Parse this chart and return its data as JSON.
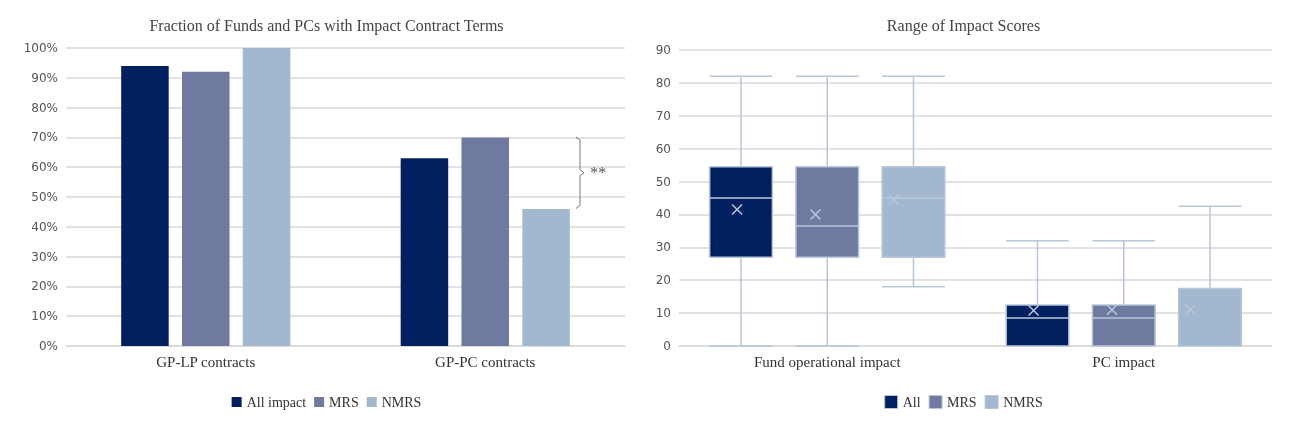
{
  "chart_data": [
    {
      "type": "bar",
      "title": "Fraction of Funds and PCs with Impact Contract Terms",
      "categories": [
        "GP-LP contracts",
        "GP-PC contracts"
      ],
      "series": [
        {
          "name": "All impact",
          "color": "#002060",
          "values": [
            94,
            63
          ]
        },
        {
          "name": "MRS",
          "color": "#707aa0",
          "values": [
            92,
            70
          ]
        },
        {
          "name": "NMRS",
          "color": "#a2b8ce",
          "values": [
            100,
            46
          ]
        }
      ],
      "ylim": [
        0,
        100
      ],
      "yticks": [
        {
          "value": 0,
          "label": "0%"
        },
        {
          "value": 10,
          "label": "10%"
        },
        {
          "value": 20,
          "label": "20%"
        },
        {
          "value": 30,
          "label": "30%"
        },
        {
          "value": 40,
          "label": "40%"
        },
        {
          "value": 50,
          "label": "50%"
        },
        {
          "value": 60,
          "label": "60%"
        },
        {
          "value": 70,
          "label": "70%"
        },
        {
          "value": 80,
          "label": "80%"
        },
        {
          "value": 90,
          "label": "90%"
        },
        {
          "value": 100,
          "label": "100%"
        }
      ],
      "grid": "y",
      "legend": "bottom",
      "annotations": [
        "**"
      ]
    },
    {
      "type": "box",
      "title": "Range of Impact Scores",
      "categories": [
        "Fund operational impact",
        "PC impact"
      ],
      "series": [
        {
          "name": "All",
          "color": "#002060",
          "boxes": [
            {
              "low": 0,
              "q1": 27,
              "median": 45,
              "q3": 54.5,
              "high": 82,
              "mean": 41.5
            },
            {
              "low": 0,
              "q1": 0,
              "median": 8.5,
              "q3": 12.5,
              "high": 32,
              "mean": 10.8
            }
          ]
        },
        {
          "name": "MRS",
          "color": "#707aa0",
          "boxes": [
            {
              "low": 0,
              "q1": 27,
              "median": 36.5,
              "q3": 54.5,
              "high": 82,
              "mean": 40
            },
            {
              "low": 0,
              "q1": 0,
              "median": 8.5,
              "q3": 12.5,
              "high": 32,
              "mean": 11
            }
          ]
        },
        {
          "name": "NMRS",
          "color": "#a2b8ce",
          "boxes": [
            {
              "low": 18,
              "q1": 27,
              "median": 45,
              "q3": 54.5,
              "high": 82,
              "mean": 44.5
            },
            {
              "low": 0,
              "q1": 0,
              "median": 0,
              "q3": 17.5,
              "high": 42.5,
              "mean": 11
            }
          ]
        }
      ],
      "ylim": [
        0,
        90
      ],
      "yticks": [
        0,
        10,
        20,
        30,
        40,
        50,
        60,
        70,
        80,
        90
      ],
      "grid": "y",
      "legend": "bottom",
      "marker": "cross"
    }
  ]
}
